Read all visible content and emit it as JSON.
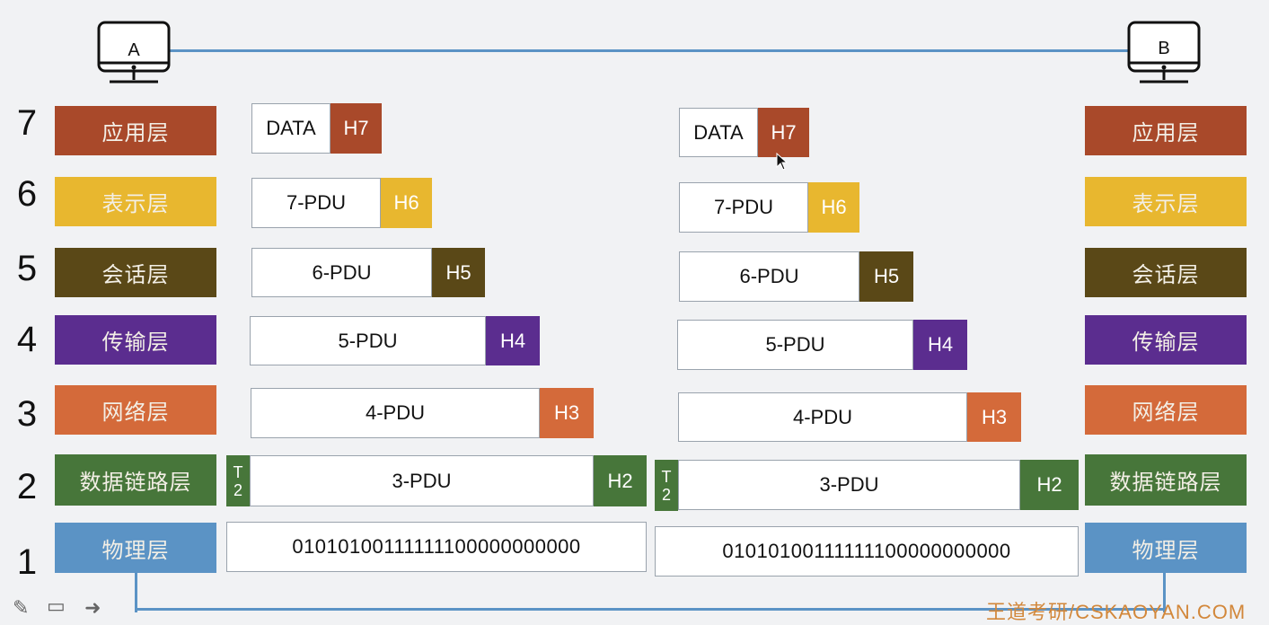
{
  "hosts": {
    "left": {
      "label": "A"
    },
    "right": {
      "label": "B"
    }
  },
  "layers": [
    {
      "number": "7",
      "name": "应用层",
      "color": "#a9492a"
    },
    {
      "number": "6",
      "name": "表示层",
      "color": "#e8b72f"
    },
    {
      "number": "5",
      "name": "会话层",
      "color": "#5a4817"
    },
    {
      "number": "4",
      "name": "传输层",
      "color": "#5b2d8f"
    },
    {
      "number": "3",
      "name": "网络层",
      "color": "#d46a3a"
    },
    {
      "number": "2",
      "name": "数据链路层",
      "color": "#47763a"
    },
    {
      "number": "1",
      "name": "物理层",
      "color": "#5b93c5"
    }
  ],
  "units": {
    "l7": {
      "payload": "DATA",
      "header": "H7"
    },
    "l6": {
      "payload": "7-PDU",
      "header": "H6"
    },
    "l5": {
      "payload": "6-PDU",
      "header": "H5"
    },
    "l4": {
      "payload": "5-PDU",
      "header": "H4"
    },
    "l3": {
      "payload": "4-PDU",
      "header": "H3"
    },
    "l2": {
      "payload": "3-PDU",
      "header": "H2",
      "trailer_top": "T",
      "trailer_bottom": "2"
    },
    "l1": {
      "bits": "01010100111111100000000000"
    }
  },
  "watermark": {
    "text": "王道考研/CSKAOYAN.COM"
  },
  "toolbar": {
    "pen": "✎",
    "screen": "▭",
    "next": "➜"
  }
}
